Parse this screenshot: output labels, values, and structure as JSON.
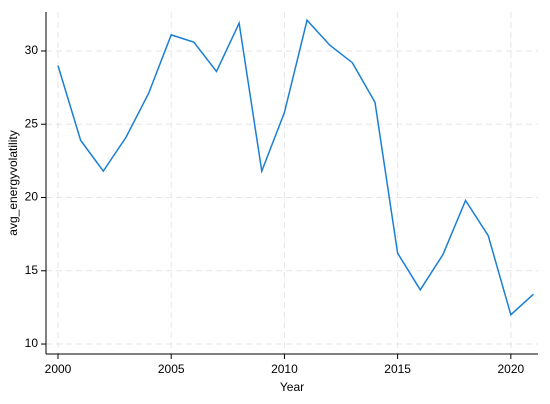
{
  "chart_data": {
    "type": "line",
    "x_label": "Year",
    "y_label": "avg_energyvolatility",
    "x": [
      2000,
      2001,
      2002,
      2003,
      2004,
      2005,
      2006,
      2007,
      2008,
      2009,
      2010,
      2011,
      2012,
      2013,
      2014,
      2015,
      2016,
      2017,
      2018,
      2019,
      2020,
      2021
    ],
    "series": [
      {
        "color": "#1a7fd4",
        "values": [
          29.0,
          23.9,
          21.8,
          24.1,
          27.1,
          31.1,
          30.6,
          28.6,
          31.9,
          21.8,
          25.8,
          32.1,
          30.4,
          29.2,
          26.5,
          16.2,
          13.7,
          16.1,
          19.8,
          17.4,
          12.0,
          13.4
        ]
      }
    ],
    "xlim": [
      1999.47,
      2021.2
    ],
    "xticks": [
      2000,
      2005,
      2010,
      2015,
      2020
    ],
    "ylim": [
      9.32,
      32.66
    ],
    "yticks": [
      10,
      15,
      20,
      25,
      30
    ],
    "grid": true
  }
}
